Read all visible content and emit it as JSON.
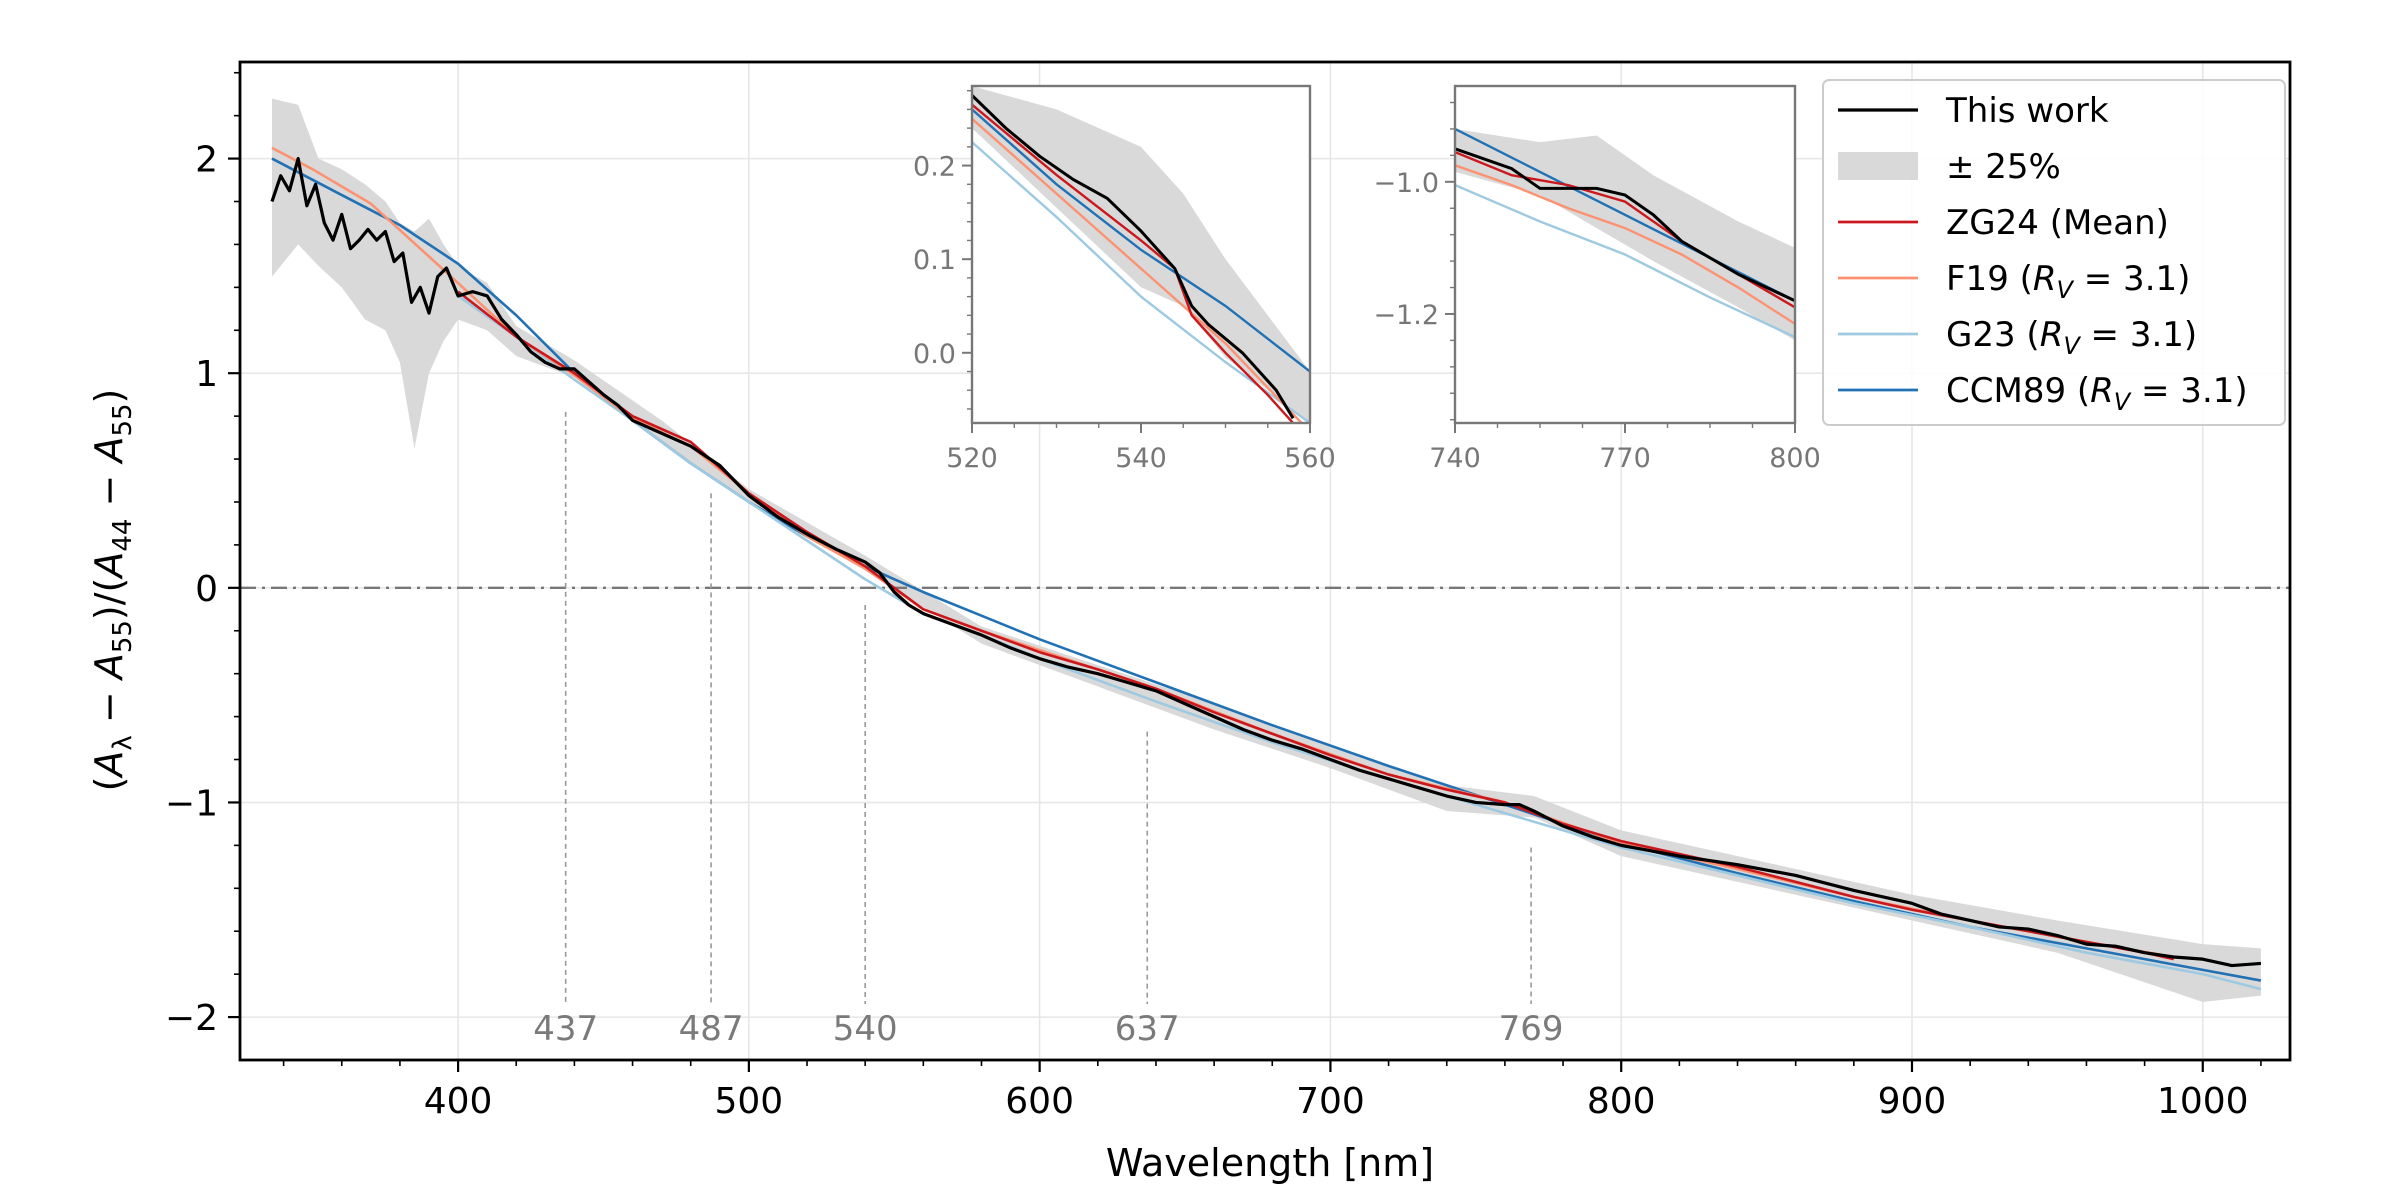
{
  "chart_data": {
    "type": "line",
    "xlabel": "Wavelength [nm]",
    "ylabel": "(A_λ − A_55)/(A_44 − A_55)",
    "xlim": [
      325,
      1030
    ],
    "ylim": [
      -2.2,
      2.45
    ],
    "x_ticks": [
      400,
      500,
      600,
      700,
      800,
      900,
      1000
    ],
    "y_ticks": [
      {
        "value": -2,
        "label": "−2"
      },
      {
        "value": -1,
        "label": "−1"
      },
      {
        "value": 0,
        "label": "0"
      },
      {
        "value": 1,
        "label": "1"
      },
      {
        "value": 2,
        "label": "2"
      }
    ],
    "grid": true,
    "zero_line": true,
    "legend": {
      "position": "top-right",
      "entries": [
        {
          "label": "This work",
          "color": "#000000",
          "kind": "line"
        },
        {
          "label": "± 25%",
          "color": "#d9d9d9",
          "kind": "band"
        },
        {
          "label": "ZG24 (Mean)",
          "color": "#cb181d",
          "kind": "line"
        },
        {
          "label": "F19 (",
          "label_tail": "= 3.1)",
          "color": "#fc9272",
          "kind": "line"
        },
        {
          "label": "G23 (",
          "label_tail": "= 3.1)",
          "color": "#9ecae1",
          "kind": "line"
        },
        {
          "label": "CCM89 (",
          "label_tail": "= 3.1)",
          "color": "#2171b5",
          "kind": "line"
        }
      ]
    },
    "features": [
      {
        "wavelength": 437,
        "label": "437",
        "y_top": 0.82
      },
      {
        "wavelength": 487,
        "label": "487",
        "y_top": 0.44
      },
      {
        "wavelength": 540,
        "label": "540",
        "y_top": -0.08
      },
      {
        "wavelength": 637,
        "label": "637",
        "y_top": -0.67
      },
      {
        "wavelength": 769,
        "label": "769",
        "y_top": -1.21
      }
    ],
    "series": [
      {
        "name": "This work",
        "color": "#000000",
        "x": [
          336,
          339,
          342,
          345,
          348,
          351,
          354,
          357,
          360,
          363,
          366,
          369,
          372,
          375,
          378,
          381,
          384,
          387,
          390,
          393,
          396,
          400,
          405,
          410,
          415,
          420,
          425,
          430,
          435,
          440,
          445,
          450,
          455,
          460,
          470,
          480,
          490,
          500,
          510,
          520,
          530,
          540,
          545,
          550,
          555,
          560,
          570,
          580,
          590,
          600,
          610,
          620,
          630,
          640,
          650,
          660,
          670,
          680,
          690,
          700,
          710,
          720,
          730,
          740,
          750,
          760,
          765,
          770,
          780,
          790,
          800,
          820,
          840,
          860,
          880,
          900,
          910,
          920,
          930,
          940,
          950,
          960,
          970,
          980,
          990,
          1000,
          1010,
          1020
        ],
        "y": [
          1.8,
          1.92,
          1.85,
          2.0,
          1.78,
          1.88,
          1.7,
          1.62,
          1.74,
          1.58,
          1.62,
          1.67,
          1.62,
          1.66,
          1.52,
          1.56,
          1.33,
          1.4,
          1.28,
          1.45,
          1.49,
          1.36,
          1.38,
          1.36,
          1.25,
          1.18,
          1.1,
          1.05,
          1.02,
          1.02,
          0.96,
          0.9,
          0.85,
          0.78,
          0.72,
          0.66,
          0.57,
          0.43,
          0.33,
          0.25,
          0.18,
          0.12,
          0.07,
          -0.02,
          -0.08,
          -0.12,
          -0.17,
          -0.22,
          -0.28,
          -0.33,
          -0.37,
          -0.4,
          -0.44,
          -0.48,
          -0.54,
          -0.6,
          -0.66,
          -0.71,
          -0.75,
          -0.8,
          -0.85,
          -0.89,
          -0.93,
          -0.97,
          -1.0,
          -1.01,
          -1.01,
          -1.04,
          -1.11,
          -1.16,
          -1.2,
          -1.25,
          -1.29,
          -1.34,
          -1.41,
          -1.47,
          -1.52,
          -1.55,
          -1.58,
          -1.59,
          -1.62,
          -1.66,
          -1.67,
          -1.7,
          -1.72,
          -1.73,
          -1.76,
          -1.75
        ]
      },
      {
        "name": "ZG24 (Mean)",
        "color": "#cb181d",
        "x": [
          400,
          420,
          440,
          460,
          480,
          500,
          520,
          540,
          560,
          580,
          600,
          620,
          640,
          660,
          680,
          700,
          720,
          740,
          760,
          780,
          800,
          820,
          840,
          860,
          880,
          900,
          920,
          940,
          960,
          980,
          990
        ],
        "y": [
          1.38,
          1.17,
          1.0,
          0.8,
          0.68,
          0.44,
          0.26,
          0.1,
          -0.1,
          -0.2,
          -0.3,
          -0.38,
          -0.47,
          -0.58,
          -0.68,
          -0.78,
          -0.87,
          -0.94,
          -1.0,
          -1.1,
          -1.18,
          -1.24,
          -1.3,
          -1.37,
          -1.44,
          -1.5,
          -1.55,
          -1.6,
          -1.65,
          -1.7,
          -1.73
        ]
      },
      {
        "name": "F19",
        "color": "#fc9272",
        "x": [
          336,
          350,
          370,
          400,
          420,
          440,
          460,
          480,
          500,
          520,
          540,
          560,
          580,
          600,
          640,
          680,
          720,
          760,
          800,
          840,
          880,
          920,
          960,
          990
        ],
        "y": [
          2.05,
          1.95,
          1.79,
          1.42,
          1.17,
          0.99,
          0.79,
          0.66,
          0.44,
          0.24,
          0.09,
          -0.1,
          -0.2,
          -0.29,
          -0.47,
          -0.68,
          -0.87,
          -1.0,
          -1.19,
          -1.31,
          -1.44,
          -1.55,
          -1.65,
          -1.72
        ]
      },
      {
        "name": "G23",
        "color": "#9ecae1",
        "x": [
          400,
          420,
          440,
          460,
          480,
          500,
          520,
          540,
          560,
          580,
          600,
          640,
          680,
          720,
          760,
          800,
          840,
          880,
          920,
          960,
          1000,
          1020
        ],
        "y": [
          1.36,
          1.17,
          0.97,
          0.78,
          0.58,
          0.4,
          0.22,
          0.04,
          -0.12,
          -0.22,
          -0.33,
          -0.53,
          -0.72,
          -0.89,
          -1.05,
          -1.21,
          -1.34,
          -1.47,
          -1.58,
          -1.7,
          -1.8,
          -1.87
        ]
      },
      {
        "name": "CCM89",
        "color": "#2171b5",
        "x": [
          336,
          360,
          380,
          400,
          420,
          440,
          460,
          480,
          500,
          520,
          540,
          560,
          580,
          600,
          640,
          680,
          720,
          760,
          800,
          840,
          880,
          920,
          960,
          1000,
          1020
        ],
        "y": [
          2.0,
          1.83,
          1.69,
          1.51,
          1.27,
          1.0,
          0.78,
          0.58,
          0.4,
          0.24,
          0.1,
          -0.02,
          -0.13,
          -0.24,
          -0.44,
          -0.64,
          -0.83,
          -1.01,
          -1.19,
          -1.33,
          -1.46,
          -1.58,
          -1.68,
          -1.78,
          -1.83
        ]
      }
    ],
    "band": {
      "name": "± 25%",
      "color": "#d9d9d9",
      "x": [
        336,
        345,
        352,
        360,
        368,
        375,
        380,
        385,
        390,
        395,
        400,
        410,
        420,
        440,
        470,
        500,
        540,
        580,
        620,
        660,
        700,
        740,
        770,
        800,
        850,
        900,
        950,
        1000,
        1020
      ],
      "upper": [
        2.28,
        2.25,
        2.0,
        1.95,
        1.88,
        1.8,
        1.7,
        1.66,
        1.72,
        1.6,
        1.5,
        1.42,
        1.22,
        1.06,
        0.78,
        0.46,
        0.15,
        -0.18,
        -0.36,
        -0.54,
        -0.74,
        -0.92,
        -0.97,
        -1.13,
        -1.28,
        -1.43,
        -1.55,
        -1.66,
        -1.68
      ],
      "lower": [
        1.45,
        1.6,
        1.5,
        1.4,
        1.25,
        1.2,
        1.05,
        0.65,
        1.0,
        1.15,
        1.25,
        1.2,
        1.08,
        0.98,
        0.68,
        0.4,
        0.08,
        -0.26,
        -0.46,
        -0.66,
        -0.84,
        -1.04,
        -1.07,
        -1.25,
        -1.4,
        -1.55,
        -1.7,
        -1.93,
        -1.9
      ]
    },
    "insets": [
      {
        "xlim": [
          520,
          560
        ],
        "ylim": [
          -0.075,
          0.285
        ],
        "x_ticks": [
          520,
          540,
          560
        ],
        "y_ticks": [
          {
            "value": 0.0,
            "label": "0.0"
          },
          {
            "value": 0.1,
            "label": "0.1"
          },
          {
            "value": 0.2,
            "label": "0.2"
          }
        ],
        "series": [
          {
            "name": "This work",
            "color": "#000000",
            "x": [
              520,
              524,
              528,
              532,
              536,
              540,
              542,
              544,
              546,
              548,
              552,
              556,
              558
            ],
            "y": [
              0.275,
              0.24,
              0.21,
              0.185,
              0.165,
              0.13,
              0.11,
              0.09,
              0.05,
              0.03,
              0.0,
              -0.04,
              -0.07
            ]
          },
          {
            "name": "ZG24 (Mean)",
            "color": "#cb181d",
            "x": [
              520,
              530,
              540,
              544,
              546,
              550,
              555,
              558
            ],
            "y": [
              0.265,
              0.19,
              0.12,
              0.09,
              0.04,
              0.0,
              -0.045,
              -0.075
            ]
          },
          {
            "name": "F19",
            "color": "#fc9272",
            "x": [
              520,
              530,
              540,
              550,
              559
            ],
            "y": [
              0.25,
              0.17,
              0.09,
              0.01,
              -0.075
            ]
          },
          {
            "name": "G23",
            "color": "#9ecae1",
            "x": [
              520,
              530,
              540,
              550,
              560
            ],
            "y": [
              0.225,
              0.145,
              0.06,
              -0.01,
              -0.075
            ]
          },
          {
            "name": "CCM89",
            "color": "#2171b5",
            "x": [
              520,
              530,
              540,
              550,
              560
            ],
            "y": [
              0.26,
              0.18,
              0.11,
              0.05,
              -0.02
            ]
          }
        ],
        "band": {
          "x": [
            520,
            530,
            540,
            545,
            550,
            560
          ],
          "upper": [
            0.285,
            0.26,
            0.22,
            0.17,
            0.1,
            -0.02
          ],
          "lower": [
            0.24,
            0.155,
            0.07,
            0.05,
            -0.005,
            -0.075
          ]
        }
      },
      {
        "xlim": [
          740,
          800
        ],
        "ylim": [
          -1.365,
          -0.855
        ],
        "x_ticks": [
          740,
          770,
          800
        ],
        "y_ticks": [
          {
            "value": -1.2,
            "label": "−1.2"
          },
          {
            "value": -1.0,
            "label": "−1.0"
          }
        ],
        "series": [
          {
            "name": "This work",
            "color": "#000000",
            "x": [
              740,
              750,
              755,
              760,
              765,
              770,
              775,
              780,
              790,
              800
            ],
            "y": [
              -0.95,
              -0.98,
              -1.01,
              -1.01,
              -1.01,
              -1.02,
              -1.05,
              -1.09,
              -1.14,
              -1.18
            ]
          },
          {
            "name": "ZG24 (Mean)",
            "color": "#cb181d",
            "x": [
              740,
              750,
              760,
              770,
              780,
              790,
              800
            ],
            "y": [
              -0.955,
              -0.99,
              -1.005,
              -1.03,
              -1.09,
              -1.14,
              -1.19
            ]
          },
          {
            "name": "F19",
            "color": "#fc9272",
            "x": [
              740,
              750,
              760,
              770,
              780,
              790,
              800
            ],
            "y": [
              -0.975,
              -1.005,
              -1.04,
              -1.07,
              -1.11,
              -1.16,
              -1.215
            ]
          },
          {
            "name": "G23",
            "color": "#9ecae1",
            "x": [
              740,
              755,
              770,
              785,
              800
            ],
            "y": [
              -1.005,
              -1.06,
              -1.11,
              -1.175,
              -1.235
            ]
          },
          {
            "name": "CCM89",
            "color": "#2171b5",
            "x": [
              740,
              755,
              770,
              785,
              800
            ],
            "y": [
              -0.92,
              -0.985,
              -1.05,
              -1.115,
              -1.18
            ]
          }
        ],
        "band": {
          "x": [
            740,
            755,
            765,
            775,
            790,
            800
          ],
          "upper": [
            -0.92,
            -0.94,
            -0.93,
            -0.99,
            -1.06,
            -1.1
          ],
          "lower": [
            -0.985,
            -1.02,
            -1.07,
            -1.12,
            -1.19,
            -1.24
          ]
        }
      }
    ]
  }
}
